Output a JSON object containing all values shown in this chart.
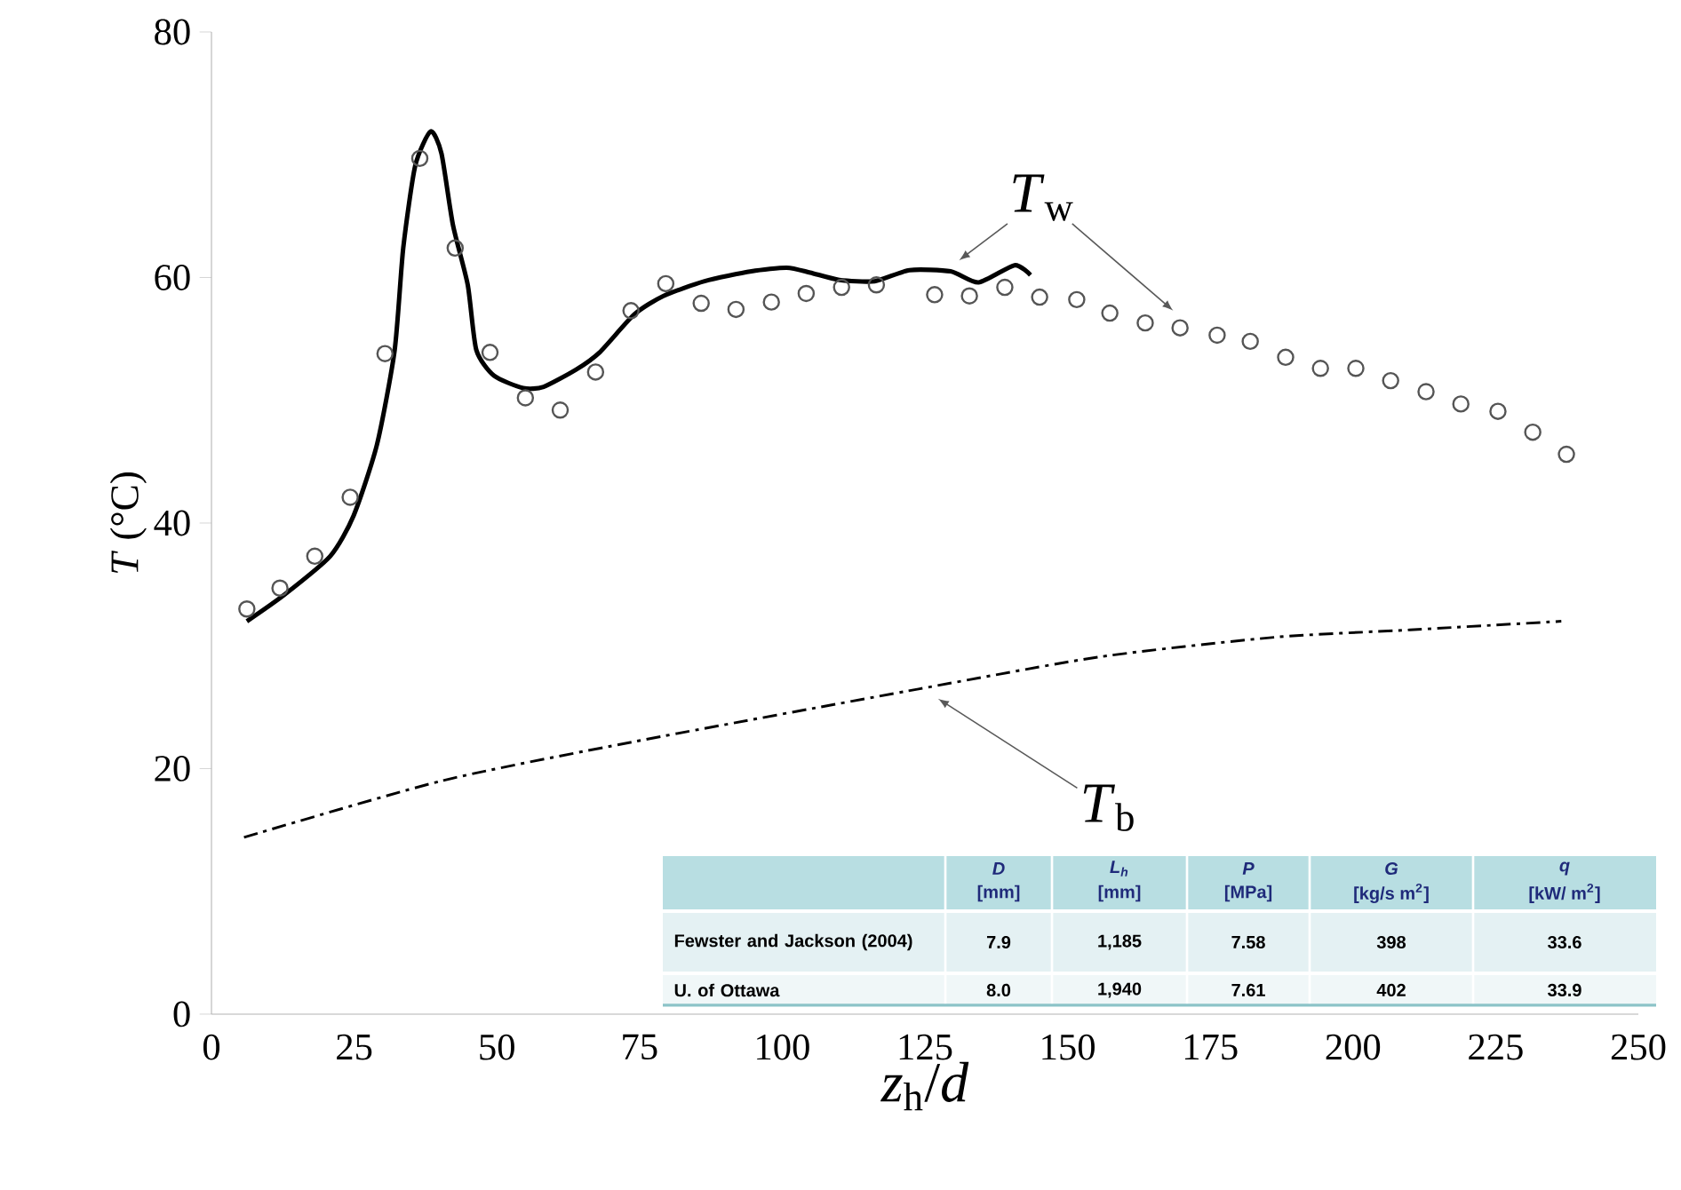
{
  "chart_data": {
    "type": "line",
    "xlabel": "*z*$_{h}$/*d*",
    "ylabel": "*T* (°C)",
    "xlim": [
      0,
      250
    ],
    "xticks": [
      0,
      25,
      50,
      75,
      100,
      125,
      150,
      175,
      200,
      225,
      250
    ],
    "ylim": [
      0,
      80
    ],
    "yticks": [
      0,
      20,
      40,
      60,
      80
    ],
    "series": [
      {
        "type": "scatter",
        "color": "#555555",
        "marker": "circle",
        "x": [
          6.2,
          12.0,
          18.1,
          24.3,
          30.4,
          36.5,
          42.7,
          48.8,
          55.0,
          61.1,
          67.3,
          73.5,
          79.6,
          85.8,
          91.9,
          98.1,
          104.2,
          110.4,
          116.5,
          126.7,
          132.8,
          139.0,
          145.1,
          151.6,
          157.4,
          163.6,
          169.7,
          176.2,
          182.0,
          188.2,
          194.3,
          200.5,
          206.6,
          212.8,
          218.9,
          225.4,
          231.5,
          237.4
        ],
        "values": [
          33.0,
          34.7,
          37.3,
          42.1,
          53.8,
          69.7,
          62.4,
          53.9,
          50.2,
          49.2,
          52.3,
          57.3,
          59.5,
          57.9,
          57.4,
          58.0,
          58.7,
          59.2,
          59.4,
          58.6,
          58.5,
          59.2,
          58.4,
          58.2,
          57.1,
          56.3,
          55.9,
          55.3,
          54.8,
          53.5,
          52.6,
          52.6,
          51.6,
          50.7,
          49.7,
          49.1,
          47.4,
          45.6
        ]
      },
      {
        "color": "#000000",
        "marker": "none",
        "line_style": "solid",
        "x": [
          6.2,
          12.6,
          20.8,
          24.9,
          29.0,
          32.1,
          33.6,
          35.7,
          38.4,
          40.3,
          42.3,
          44.9,
          46.4,
          49.5,
          54.6,
          58.2,
          63.9,
          68.0,
          74.1,
          79.2,
          86.4,
          94.6,
          100.8,
          104.9,
          110.0,
          116.2,
          122.3,
          129.5,
          134.4,
          140.7,
          143.5
        ],
        "values": [
          32.0,
          34.1,
          37.3,
          40.6,
          46.4,
          54.1,
          62.4,
          69.1,
          71.9,
          70.1,
          64.3,
          59.4,
          54.1,
          52.0,
          51.0,
          51.1,
          52.5,
          53.9,
          57.0,
          58.5,
          59.7,
          60.5,
          60.8,
          60.4,
          59.8,
          59.7,
          60.6,
          60.5,
          59.6,
          61.0,
          60.2
        ]
      },
      {
        "color": "#000000",
        "marker": "none",
        "line_style": "dashdot",
        "x": [
          5.7,
          40.3,
          74.1,
          124.1,
          155.6,
          186.3,
          210.0,
          236.5
        ],
        "values": [
          14.4,
          19.0,
          22.2,
          26.5,
          29.1,
          30.7,
          31.3,
          32.0
        ]
      }
    ],
    "annotations": [
      "*T*$_{w}$",
      "*T*$_{b}$",
      "D",
      "L$_{h}$",
      "P",
      "G",
      "q",
      "[mm]",
      "[mm]",
      "[MPa]",
      "[kg/s m$^{2}$]",
      "[kW/ m$^{2}$]",
      "Fewster and Jackson (2004)",
      "7.9",
      "1,185",
      "7.58",
      "398",
      "33.6",
      "U. of Ottawa",
      "8.0",
      "1,940",
      "7.61",
      "402",
      "33.9"
    ]
  }
}
